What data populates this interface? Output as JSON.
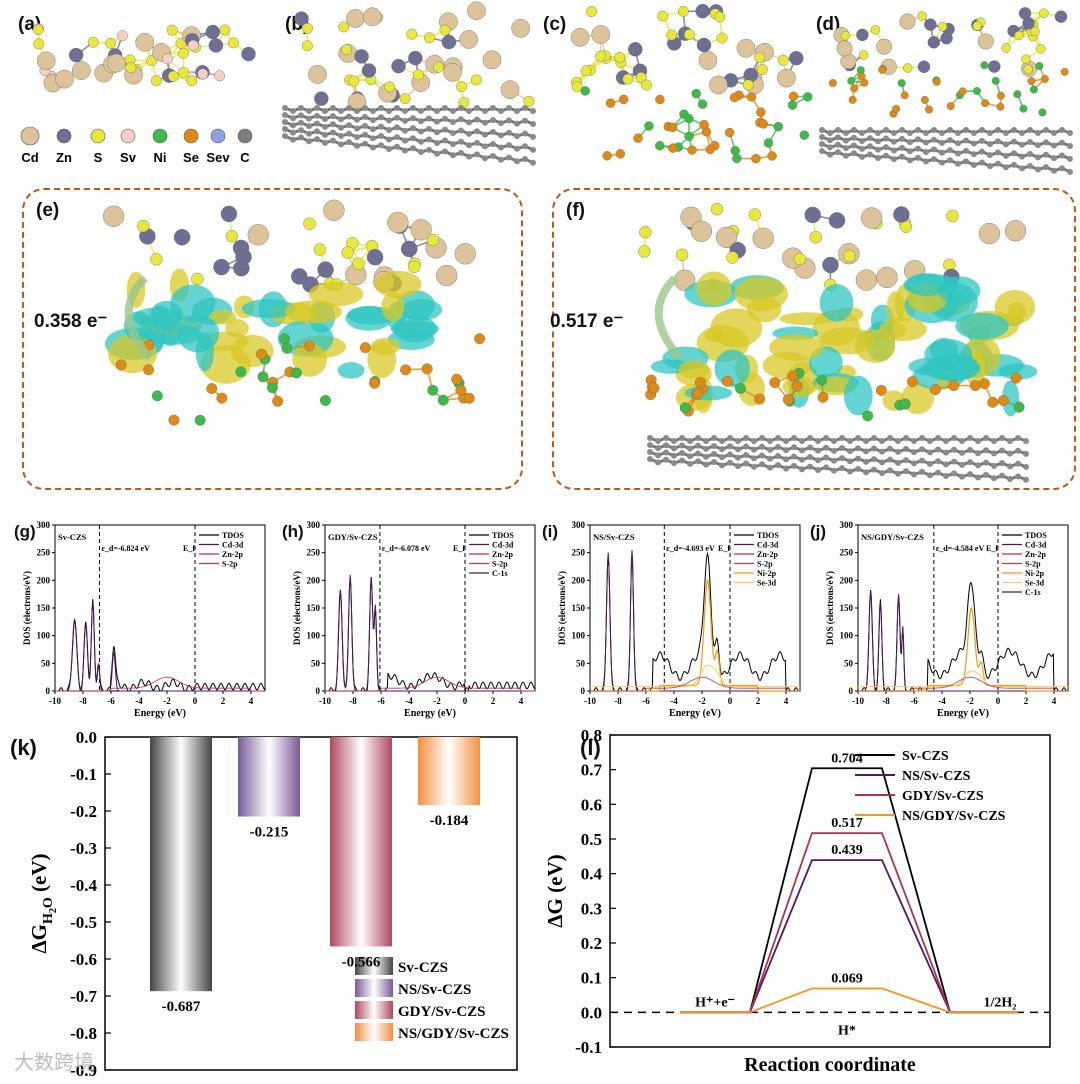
{
  "panels": {
    "a": "(a)",
    "b": "(b)",
    "c": "(c)",
    "d": "(d)",
    "e": "(e)",
    "f": "(f)",
    "g": "(g)",
    "h": "(h)",
    "i": "(i)",
    "j": "(j)",
    "k": "(k)",
    "l": "(l)"
  },
  "legend_atoms": [
    {
      "label": "Cd",
      "color": "#dcc39a"
    },
    {
      "label": "Zn",
      "color": "#6e6f92"
    },
    {
      "label": "S",
      "color": "#e8e83a"
    },
    {
      "label": "Sv",
      "color": "#f3d2c2"
    },
    {
      "label": "Ni",
      "color": "#3dba4a"
    },
    {
      "label": "Se",
      "color": "#e08a16"
    },
    {
      "label": "Sev",
      "color": "#8da2e0"
    },
    {
      "label": "C",
      "color": "#7d7d7d"
    }
  ],
  "charge_transfer": {
    "e": "0.358 e⁻",
    "f": "0.517 e⁻"
  },
  "dos": {
    "ylabel": "DOS (electrons/eV)",
    "xlabel": "Energy (eV)",
    "ef": "E_f",
    "xticks": [
      "-10",
      "-8",
      "-6",
      "-4",
      "-2",
      "0",
      "2",
      "4"
    ],
    "yticks": [
      "0",
      "50",
      "100",
      "150",
      "200",
      "250",
      "300"
    ],
    "panels": [
      {
        "title": "Sv-CZS",
        "ed": "ε_d=-6.824 eV",
        "ed_value": -6.824,
        "legend": [
          "TDOS",
          "Cd-3d",
          "Zn-2p",
          "S-2p"
        ],
        "legend_colors": [
          "#000000",
          "#4b1a5a",
          "#b03060",
          "#c03a50"
        ]
      },
      {
        "title": "GDY/Sv-CZS",
        "ed": "ε_d=-6.078 eV",
        "ed_value": -6.078,
        "legend": [
          "TDOS",
          "Cd-3d",
          "Zn-2p",
          "S-2p",
          "C-1s"
        ],
        "legend_colors": [
          "#000000",
          "#4b1a5a",
          "#b03060",
          "#c03a50",
          "#2a2a5a"
        ]
      },
      {
        "title": "NS/Sv-CZS",
        "ed": "ε_d=-4.693 eV",
        "ed_value": -4.693,
        "legend": [
          "TDOS",
          "Cd-3d",
          "Zn-2p",
          "S-2p",
          "Ni-2p",
          "Se-3d"
        ],
        "legend_colors": [
          "#000000",
          "#4b1a5a",
          "#b03060",
          "#c03a50",
          "#f39a1a",
          "#f3d060"
        ]
      },
      {
        "title": "NS/GDY/Sv-CZS",
        "ed": "ε_d=-4.584 eV",
        "ed_value": -4.584,
        "legend": [
          "TDOS",
          "Cd-3d",
          "Zn-2p",
          "S-2p",
          "Ni-2p",
          "Se-3d",
          "C-1s"
        ],
        "legend_colors": [
          "#000000",
          "#4b1a5a",
          "#b03060",
          "#c03a50",
          "#f39a1a",
          "#f3d060",
          "#2a2a5a"
        ]
      }
    ]
  },
  "chart_data": [
    {
      "type": "bar",
      "ylabel": "ΔG_H2O (eV)",
      "categories": [
        "Sv-CZS",
        "NS/Sv-CZS",
        "GDY/Sv-CZS",
        "NS/GDY/Sv-CZS"
      ],
      "values": [
        -0.687,
        -0.215,
        -0.566,
        -0.184
      ],
      "value_labels": [
        "-0.687",
        "-0.215",
        "-0.566",
        "-0.184"
      ],
      "colors": [
        "#444444",
        "#7a5a96",
        "#b04860",
        "#f59040"
      ],
      "ylim": [
        -0.9,
        0.0
      ],
      "yticks": [
        "0.0",
        "-0.1",
        "-0.2",
        "-0.3",
        "-0.4",
        "-0.5",
        "-0.6",
        "-0.7",
        "-0.8",
        "-0.9"
      ],
      "legend_position": "bottom-right"
    },
    {
      "type": "line",
      "ylabel": "ΔG (eV)",
      "xlabel": "Reaction coordinate",
      "x": [
        "H⁺+e⁻",
        "H*",
        "1/2H₂"
      ],
      "ylim": [
        -0.1,
        0.8
      ],
      "yticks": [
        "-0.1",
        "0.0",
        "0.1",
        "0.2",
        "0.3",
        "0.4",
        "0.5",
        "0.6",
        "0.7",
        "0.8"
      ],
      "series": [
        {
          "name": "Sv-CZS",
          "values": [
            0,
            0.704,
            0
          ],
          "label": "0.704",
          "color": "#000000"
        },
        {
          "name": "NS/Sv-CZS",
          "values": [
            0,
            0.439,
            0
          ],
          "label": "0.439",
          "color": "#4a1a70"
        },
        {
          "name": "GDY/Sv-CZS",
          "values": [
            0,
            0.517,
            0
          ],
          "label": "0.517",
          "color": "#b03050"
        },
        {
          "name": "NS/GDY/Sv-CZS",
          "values": [
            0,
            0.069,
            0
          ],
          "label": "0.069",
          "color": "#f0982a"
        }
      ],
      "x_label_text": [
        "H⁺+e⁻",
        "H*",
        "1/2H₂"
      ],
      "legend_position": "top-right"
    }
  ],
  "watermark": "大数跨境"
}
